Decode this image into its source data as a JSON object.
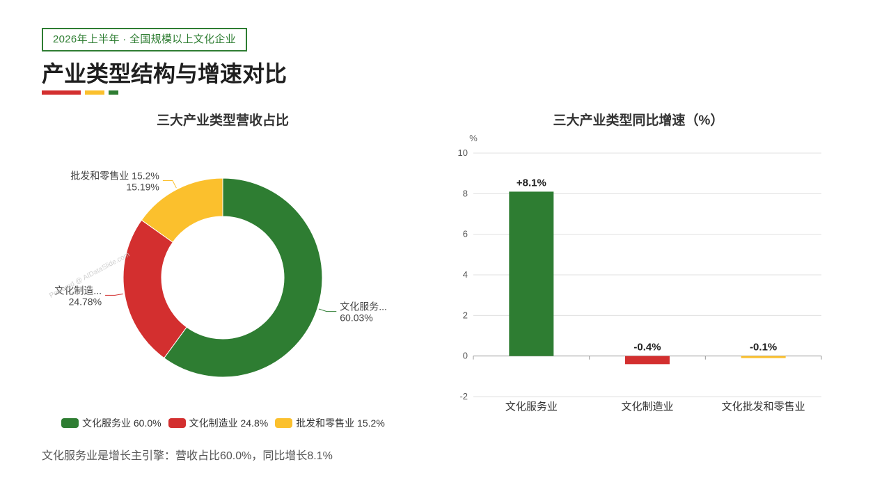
{
  "header": {
    "tag": "2026年上半年 · 全国规模以上文化企业",
    "title": "产业类型结构与增速对比",
    "accent_colors": [
      "#d32f2f",
      "#fbc02d",
      "#2e7d32"
    ]
  },
  "chart_data": [
    {
      "type": "pie",
      "title": "三大产业类型营收占比",
      "donut": true,
      "categories": [
        "文化服务业",
        "文化制造业",
        "批发和零售业"
      ],
      "values": [
        60.03,
        24.78,
        15.19
      ],
      "colors": [
        "#2e7d32",
        "#d32f2f",
        "#fbc02d"
      ],
      "slice_labels": [
        {
          "name": "文化服务...",
          "pct": "60.03%"
        },
        {
          "name": "文化制造...",
          "pct": "24.78%"
        },
        {
          "name": "批发和零售业 15.2%",
          "pct": "15.19%"
        }
      ],
      "legend": [
        {
          "label": "文化服务业 60.0%",
          "color": "#2e7d32"
        },
        {
          "label": "文化制造业 24.8%",
          "color": "#d32f2f"
        },
        {
          "label": "批发和零售业 15.2%",
          "color": "#fbc02d"
        }
      ],
      "legend_position": "bottom",
      "watermark": "Powered @ AIDataSlide.com"
    },
    {
      "type": "bar",
      "title": "三大产业类型同比增速（%）",
      "categories": [
        "文化服务业",
        "文化制造业",
        "文化批发和零售业"
      ],
      "values": [
        8.1,
        -0.4,
        -0.1
      ],
      "value_labels": [
        "+8.1%",
        "-0.4%",
        "-0.1%"
      ],
      "colors": [
        "#2e7d32",
        "#d32f2f",
        "#fbc02d"
      ],
      "ylabel": "%",
      "ylim": [
        -2,
        10
      ],
      "yticks": [
        -2,
        0,
        2,
        4,
        6,
        8,
        10
      ],
      "grid": true
    }
  ],
  "summary": "文化服务业是增长主引擎：营收占比60.0%，同比增长8.1%"
}
